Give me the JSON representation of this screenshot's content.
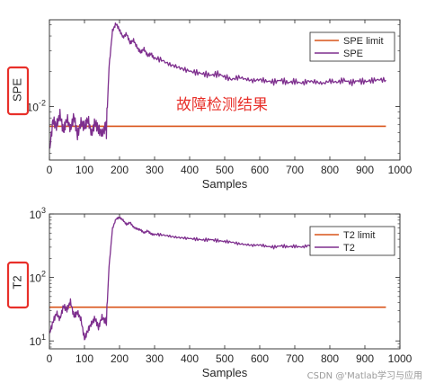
{
  "colors": {
    "limit": "#D95319",
    "signal": "#7E2F8E",
    "annotation": "#E8302A",
    "highlight_box": "#E8302A",
    "axes": "#262626"
  },
  "annotation": "故障检测结果",
  "watermark": "CSDN @'Matlab学习与应用",
  "chart_data": [
    {
      "type": "line",
      "ylabel": "SPE",
      "xlabel": "Samples",
      "xlim": [
        0,
        1000
      ],
      "xticks": [
        "0",
        "100",
        "200",
        "300",
        "400",
        "500",
        "600",
        "700",
        "800",
        "900",
        "1000"
      ],
      "yscale": "log",
      "ylim": [
        0.0035,
        0.055
      ],
      "yticks": [
        {
          "value": 0.01,
          "label": "10",
          "exp": "-2"
        }
      ],
      "legend_position": "top-right",
      "series": [
        {
          "name": "SPE limit",
          "x": [
            0,
            960
          ],
          "values": [
            0.0068,
            0.0068
          ]
        },
        {
          "name": "SPE",
          "x": [
            0,
            10,
            20,
            30,
            40,
            50,
            60,
            70,
            80,
            90,
            100,
            110,
            120,
            130,
            140,
            150,
            160,
            163,
            170,
            180,
            190,
            200,
            210,
            220,
            230,
            240,
            250,
            260,
            270,
            280,
            290,
            300,
            320,
            340,
            360,
            380,
            400,
            420,
            440,
            460,
            480,
            500,
            520,
            540,
            560,
            580,
            600,
            620,
            640,
            660,
            680,
            700,
            720,
            740,
            760,
            780,
            800,
            820,
            840,
            860,
            880,
            900,
            920,
            940,
            960
          ],
          "values": [
            0.0038,
            0.007,
            0.0062,
            0.0078,
            0.0055,
            0.0072,
            0.0058,
            0.0075,
            0.0052,
            0.0068,
            0.0062,
            0.0074,
            0.0056,
            0.0071,
            0.0063,
            0.0059,
            0.0068,
            0.0065,
            0.022,
            0.045,
            0.052,
            0.046,
            0.04,
            0.043,
            0.036,
            0.038,
            0.033,
            0.03,
            0.032,
            0.028,
            0.029,
            0.026,
            0.025,
            0.023,
            0.022,
            0.021,
            0.02,
            0.0195,
            0.019,
            0.0185,
            0.019,
            0.018,
            0.017,
            0.0178,
            0.0172,
            0.0166,
            0.017,
            0.0165,
            0.0162,
            0.0168,
            0.016,
            0.0164,
            0.0158,
            0.0165,
            0.0162,
            0.0157,
            0.0166,
            0.0161,
            0.0168,
            0.016,
            0.0166,
            0.0163,
            0.0167,
            0.017,
            0.0168
          ]
        }
      ]
    },
    {
      "type": "line",
      "ylabel": "T2",
      "xlabel": "Samples",
      "xlim": [
        0,
        1000
      ],
      "xticks": [
        "0",
        "100",
        "200",
        "300",
        "400",
        "500",
        "600",
        "700",
        "800",
        "900",
        "1000"
      ],
      "yscale": "log",
      "ylim": [
        7.5,
        1000
      ],
      "yticks": [
        {
          "value": 10,
          "label": "10",
          "exp": "1"
        },
        {
          "value": 100,
          "label": "10",
          "exp": "2"
        },
        {
          "value": 1000,
          "label": "10",
          "exp": "3"
        }
      ],
      "legend_position": "top-right",
      "series": [
        {
          "name": "T2 limit",
          "x": [
            0,
            960
          ],
          "values": [
            34,
            34
          ]
        },
        {
          "name": "T2",
          "x": [
            0,
            10,
            20,
            30,
            40,
            50,
            60,
            70,
            80,
            90,
            100,
            110,
            120,
            130,
            140,
            150,
            160,
            163,
            170,
            180,
            190,
            200,
            210,
            220,
            230,
            240,
            250,
            260,
            270,
            280,
            290,
            300,
            320,
            340,
            360,
            380,
            400,
            420,
            440,
            460,
            480,
            500,
            520,
            540,
            560,
            580,
            600,
            620,
            640,
            660,
            680,
            700,
            720,
            740,
            760,
            780,
            800,
            820,
            840,
            860,
            880,
            900,
            920,
            940,
            960
          ],
          "values": [
            12,
            18,
            25,
            20,
            32,
            28,
            38,
            22,
            26,
            20,
            10,
            14,
            18,
            22,
            16,
            24,
            20,
            22,
            150,
            600,
            850,
            900,
            820,
            700,
            760,
            640,
            600,
            580,
            520,
            560,
            500,
            480,
            470,
            450,
            430,
            420,
            410,
            400,
            390,
            395,
            380,
            370,
            360,
            340,
            330,
            320,
            325,
            310,
            300,
            315,
            305,
            310,
            300,
            320,
            310,
            305,
            315,
            308,
            320,
            312,
            318,
            310,
            320,
            315,
            318
          ]
        }
      ]
    }
  ]
}
